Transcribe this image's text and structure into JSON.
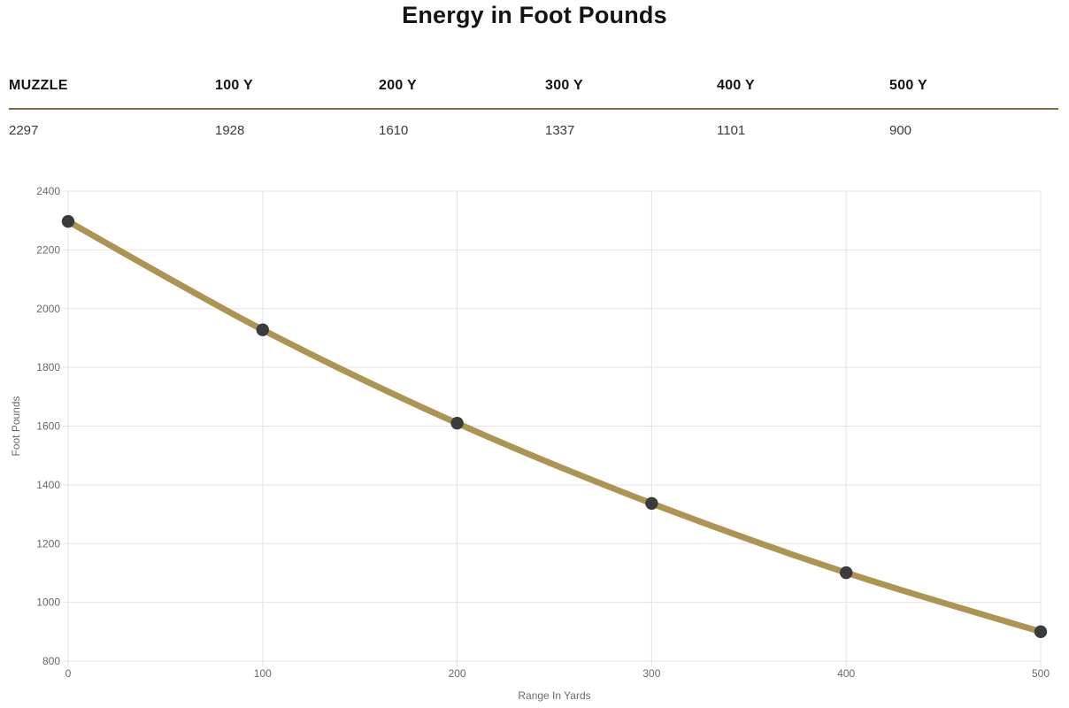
{
  "page": {
    "title": "Energy in Foot Pounds"
  },
  "table": {
    "columns": [
      "MUZZLE",
      "100 Y",
      "200 Y",
      "300 Y",
      "400 Y",
      "500 Y"
    ],
    "values": [
      "2297",
      "1928",
      "1610",
      "1337",
      "1101",
      "900"
    ]
  },
  "chart_data": {
    "type": "line",
    "title": "Energy in Foot Pounds",
    "x": [
      0,
      100,
      200,
      300,
      400,
      500
    ],
    "values": [
      2297,
      1928,
      1610,
      1337,
      1101,
      900
    ],
    "xlabel": "Range In Yards",
    "ylabel": "Foot Pounds",
    "xlim": [
      0,
      500
    ],
    "ylim": [
      800,
      2400
    ],
    "xticks": [
      0,
      100,
      200,
      300,
      400,
      500
    ],
    "ytick_step": 200,
    "grid": true,
    "legend": "none",
    "line_color": "#ae9452",
    "point_color": "#3b3b3b",
    "grid_color": "#e3e3e3"
  },
  "colors": {
    "header_rule": "#7d6e4a",
    "heading_text": "#141414",
    "body_text": "#3a3a3a",
    "axis_text": "#686868"
  }
}
